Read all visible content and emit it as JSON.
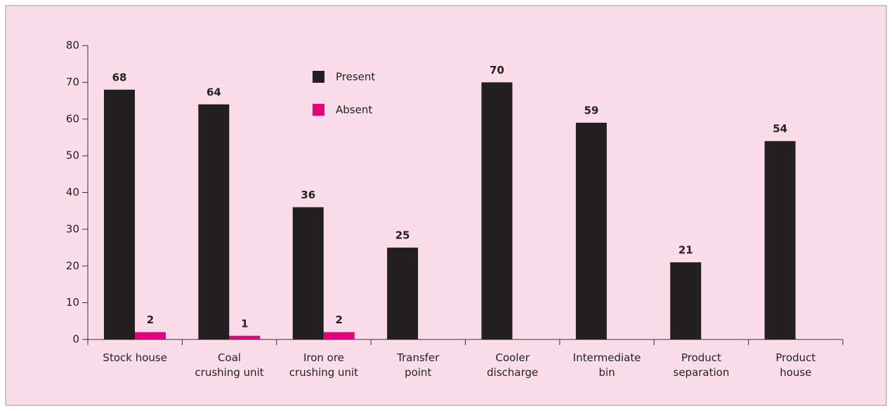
{
  "chart_data": {
    "type": "bar",
    "categories": [
      "Stock house",
      "Coal\ncrushing unit",
      "Iron ore\ncrushing unit",
      "Transfer\npoint",
      "Cooler\ndischarge",
      "Intermediate\nbin",
      "Product\nseparation",
      "Product\nhouse"
    ],
    "series": [
      {
        "name": "Present",
        "color": "#231f20",
        "values": [
          68,
          64,
          36,
          25,
          70,
          59,
          21,
          54
        ]
      },
      {
        "name": "Absent",
        "color": "#e5007e",
        "values": [
          2,
          1,
          2,
          null,
          null,
          null,
          null,
          null
        ]
      }
    ],
    "ylim": [
      0,
      80
    ],
    "yticks": [
      0,
      10,
      20,
      30,
      40,
      50,
      60,
      70,
      80
    ],
    "legend": "top"
  }
}
